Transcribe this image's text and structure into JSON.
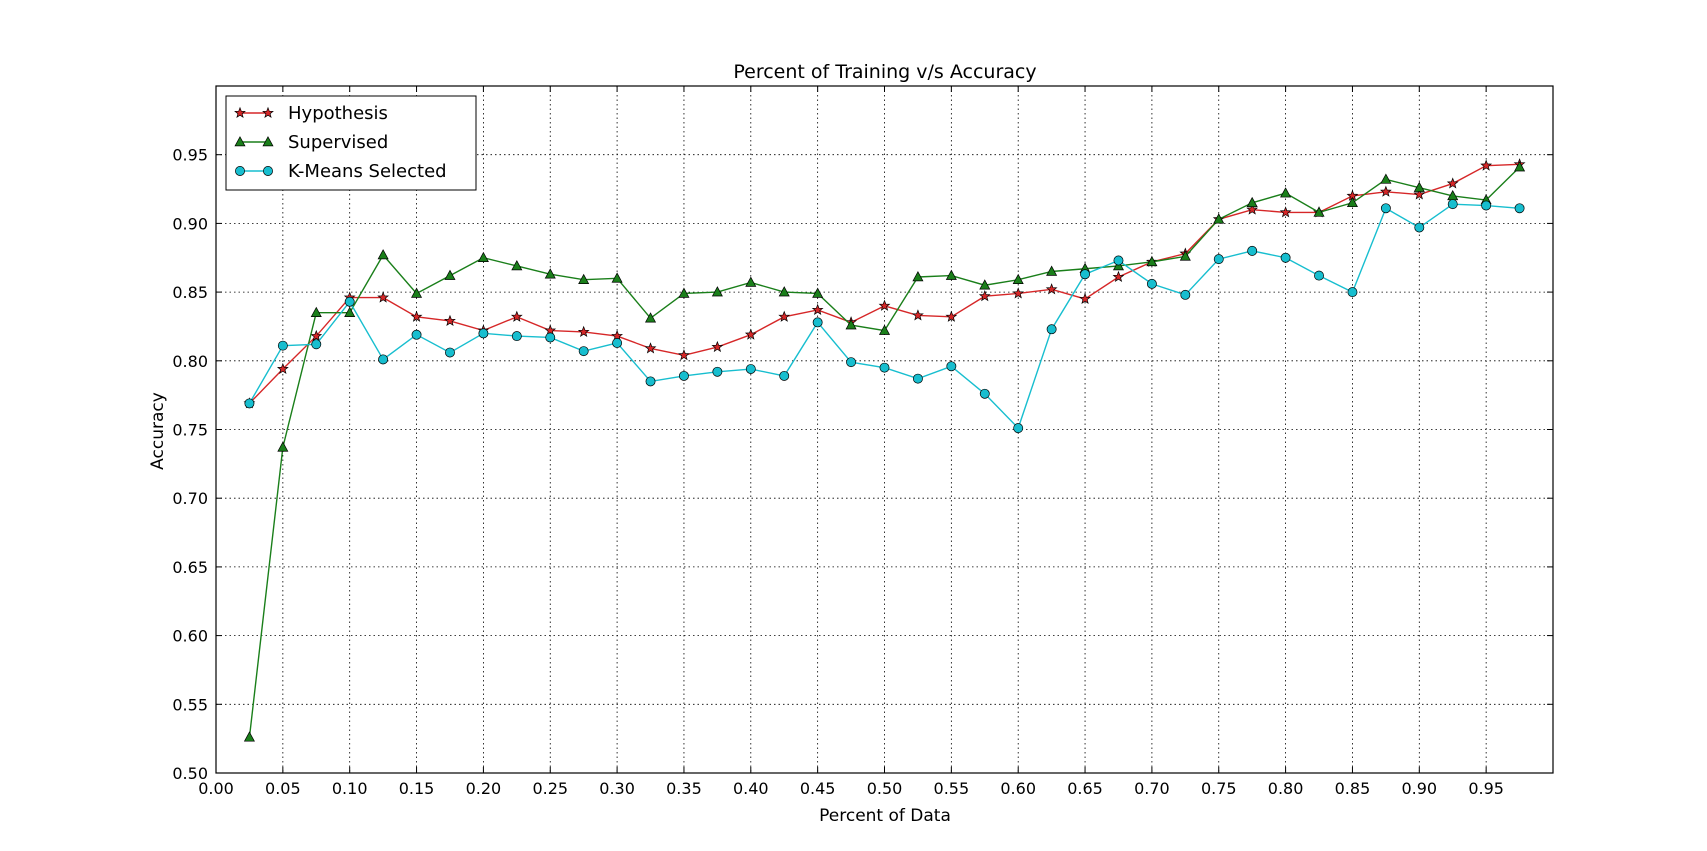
{
  "chart_data": {
    "type": "line",
    "title": "Percent of Training v/s Accuracy",
    "xlabel": "Percent of Data",
    "ylabel": "Accuracy",
    "xlim": [
      0.0,
      1.0
    ],
    "ylim": [
      0.5,
      1.0
    ],
    "grid": true,
    "legend_position": "top-left",
    "xticks": [
      "0.00",
      "0.05",
      "0.10",
      "0.15",
      "0.20",
      "0.25",
      "0.30",
      "0.35",
      "0.40",
      "0.45",
      "0.50",
      "0.55",
      "0.60",
      "0.65",
      "0.70",
      "0.75",
      "0.80",
      "0.85",
      "0.90",
      "0.95"
    ],
    "yticks": [
      "0.50",
      "0.55",
      "0.60",
      "0.65",
      "0.70",
      "0.75",
      "0.80",
      "0.85",
      "0.90",
      "0.95"
    ],
    "x": [
      0.025,
      0.05,
      0.075,
      0.1,
      0.125,
      0.15,
      0.175,
      0.2,
      0.225,
      0.25,
      0.275,
      0.3,
      0.325,
      0.35,
      0.375,
      0.4,
      0.425,
      0.45,
      0.475,
      0.5,
      0.525,
      0.55,
      0.575,
      0.6,
      0.625,
      0.65,
      0.675,
      0.7,
      0.725,
      0.75,
      0.775,
      0.8,
      0.825,
      0.85,
      0.875,
      0.9,
      0.925,
      0.95,
      0.975
    ],
    "series": [
      {
        "name": "Hypothesis",
        "color": "#d62728",
        "marker": "star",
        "values": [
          0.769,
          0.794,
          0.818,
          0.846,
          0.846,
          0.832,
          0.829,
          0.822,
          0.832,
          0.822,
          0.821,
          0.818,
          0.809,
          0.804,
          0.81,
          0.819,
          0.832,
          0.837,
          0.828,
          0.84,
          0.833,
          0.832,
          0.847,
          0.849,
          0.852,
          0.845,
          0.861,
          0.872,
          0.878,
          0.903,
          0.91,
          0.908,
          0.908,
          0.92,
          0.923,
          0.921,
          0.929,
          0.942,
          0.943
        ]
      },
      {
        "name": "Supervised",
        "color": "#1a7f1a",
        "marker": "triangle",
        "values": [
          0.526,
          0.737,
          0.835,
          0.835,
          0.877,
          0.849,
          0.862,
          0.875,
          0.869,
          0.863,
          0.859,
          0.86,
          0.831,
          0.849,
          0.85,
          0.857,
          0.85,
          0.849,
          0.826,
          0.822,
          0.861,
          0.862,
          0.855,
          0.859,
          0.865,
          0.867,
          0.869,
          0.872,
          0.876,
          0.903,
          0.915,
          0.922,
          0.908,
          0.915,
          0.932,
          0.926,
          0.92,
          0.917,
          0.941
        ]
      },
      {
        "name": "K-Means Selected",
        "color": "#17becf",
        "marker": "circle",
        "values": [
          0.769,
          0.811,
          0.812,
          0.843,
          0.801,
          0.819,
          0.806,
          0.82,
          0.818,
          0.817,
          0.807,
          0.813,
          0.785,
          0.789,
          0.792,
          0.794,
          0.789,
          0.828,
          0.799,
          0.795,
          0.787,
          0.796,
          0.776,
          0.751,
          0.823,
          0.863,
          0.873,
          0.856,
          0.848,
          0.874,
          0.88,
          0.875,
          0.862,
          0.85,
          0.911,
          0.897,
          0.914,
          0.913,
          0.911
        ]
      }
    ]
  }
}
